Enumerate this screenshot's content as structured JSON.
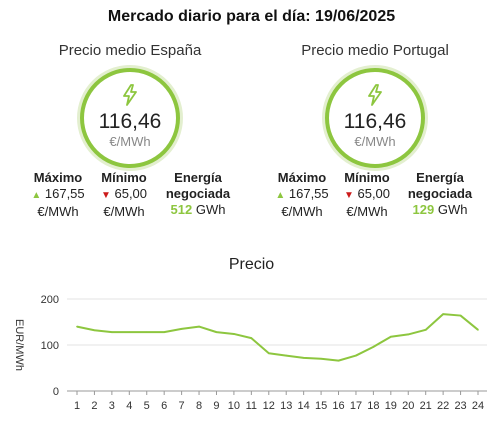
{
  "header": {
    "title": "Mercado diario para el día: 19/06/2025"
  },
  "spain": {
    "label": "Precio medio España",
    "value": "116,46",
    "unit": "€/MWh",
    "max_label": "Máximo",
    "max_value": "167,55",
    "max_unit": "€/MWh",
    "min_label": "Mínimo",
    "min_value": "65,00",
    "min_unit": "€/MWh",
    "energy_label_1": "Energía",
    "energy_label_2": "negociada",
    "energy_value": "512",
    "energy_unit": "GWh"
  },
  "portugal": {
    "label": "Precio medio Portugal",
    "value": "116,46",
    "unit": "€/MWh",
    "max_label": "Máximo",
    "max_value": "167,55",
    "max_unit": "€/MWh",
    "min_label": "Mínimo",
    "min_value": "65,00",
    "min_unit": "€/MWh",
    "energy_label_1": "Energía",
    "energy_label_2": "negociada",
    "energy_value": "129",
    "energy_unit": "GWh"
  },
  "icons": {
    "ring": "lightning-bolt-icon",
    "max": "triangle-up-icon",
    "min": "triangle-down-icon"
  },
  "colors": {
    "accent": "#8dc63f",
    "min_marker": "#cc1a1a",
    "line": "#8dc63f"
  },
  "chart_data": {
    "type": "line",
    "title": "Precio",
    "xlabel": "",
    "ylabel": "EUR/MWh",
    "x": [
      1,
      2,
      3,
      4,
      5,
      6,
      7,
      8,
      9,
      10,
      11,
      12,
      13,
      14,
      15,
      16,
      17,
      18,
      19,
      20,
      21,
      22,
      23,
      24
    ],
    "yticks": [
      0,
      100,
      200
    ],
    "ylim": [
      0,
      200
    ],
    "grid": true,
    "series": [
      {
        "values": [
          140,
          132,
          128,
          128,
          128,
          128,
          135,
          140,
          128,
          124,
          115,
          82,
          77,
          72,
          70,
          66,
          77,
          96,
          118,
          123,
          133,
          167,
          164,
          133
        ]
      }
    ]
  }
}
